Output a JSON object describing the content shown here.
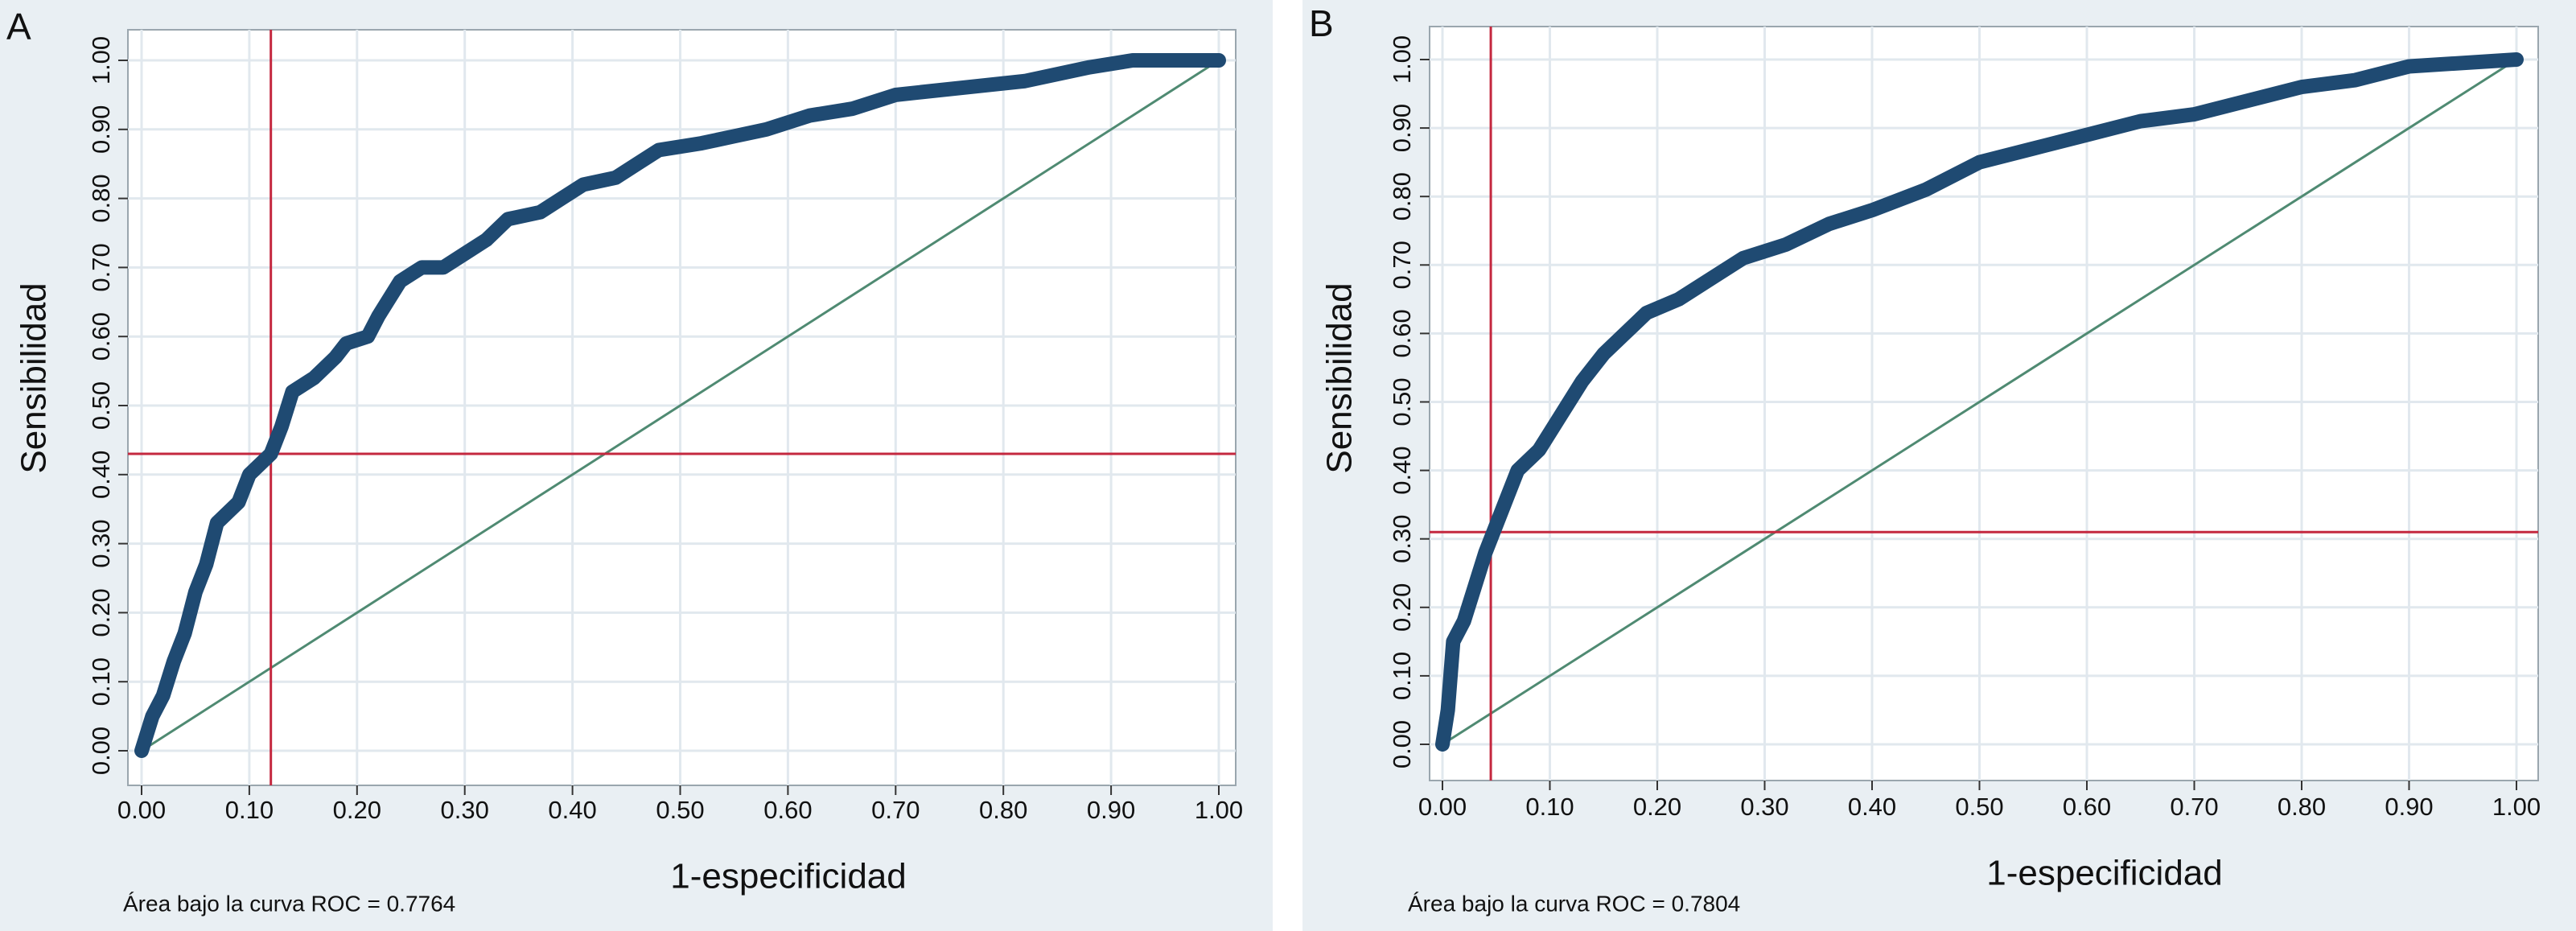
{
  "chart_data": [
    {
      "type": "line",
      "panel": "A",
      "xlabel": "1-especificidad",
      "ylabel": "Sensibilidad",
      "note": "Área bajo la curva ROC = 0.7764",
      "color": "#1f4a72",
      "grid": true,
      "x": [
        0,
        0.01,
        0.02,
        0.03,
        0.04,
        0.05,
        0.06,
        0.07,
        0.09,
        0.1,
        0.12,
        0.13,
        0.14,
        0.16,
        0.18,
        0.19,
        0.21,
        0.22,
        0.24,
        0.26,
        0.28,
        0.3,
        0.32,
        0.34,
        0.37,
        0.39,
        0.41,
        0.44,
        0.46,
        0.48,
        0.52,
        0.55,
        0.58,
        0.62,
        0.66,
        0.7,
        0.76,
        0.82,
        0.88,
        0.92,
        1
      ],
      "y": [
        0,
        0.05,
        0.08,
        0.13,
        0.17,
        0.23,
        0.27,
        0.33,
        0.36,
        0.4,
        0.43,
        0.47,
        0.52,
        0.54,
        0.57,
        0.59,
        0.6,
        0.63,
        0.68,
        0.7,
        0.7,
        0.72,
        0.74,
        0.77,
        0.78,
        0.8,
        0.82,
        0.83,
        0.85,
        0.87,
        0.88,
        0.89,
        0.9,
        0.92,
        0.93,
        0.95,
        0.96,
        0.97,
        0.99,
        1.0,
        1
      ],
      "diagonal": {
        "x": [
          0,
          1
        ],
        "y": [
          0,
          1
        ],
        "color": "#4f8a72"
      },
      "cutoff_x": 0.12,
      "cutoff_y": 0.43,
      "cutoff_color": "#c4283f",
      "xlim": [
        0,
        1
      ],
      "ylim": [
        0,
        1
      ],
      "xticks": [
        {
          "value": 0,
          "label": "0.00"
        },
        {
          "value": 0.1,
          "label": "0.10"
        },
        {
          "value": 0.2,
          "label": "0.20"
        },
        {
          "value": 0.3,
          "label": "0.30"
        },
        {
          "value": 0.4,
          "label": "0.40"
        },
        {
          "value": 0.5,
          "label": "0.50"
        },
        {
          "value": 0.6,
          "label": "0.60"
        },
        {
          "value": 0.7,
          "label": "0.70"
        },
        {
          "value": 0.8,
          "label": "0.80"
        },
        {
          "value": 0.9,
          "label": "0.90"
        },
        {
          "value": 1,
          "label": "1.00"
        }
      ],
      "yticks": [
        {
          "value": 0,
          "label": "0.00"
        },
        {
          "value": 0.1,
          "label": "0.10"
        },
        {
          "value": 0.2,
          "label": "0.20"
        },
        {
          "value": 0.3,
          "label": "0.30"
        },
        {
          "value": 0.4,
          "label": "0.40"
        },
        {
          "value": 0.5,
          "label": "0.50"
        },
        {
          "value": 0.6,
          "label": "0.60"
        },
        {
          "value": 0.7,
          "label": "0.70"
        },
        {
          "value": 0.8,
          "label": "0.80"
        },
        {
          "value": 0.9,
          "label": "0.90"
        },
        {
          "value": 1,
          "label": "1.00"
        }
      ]
    },
    {
      "type": "line",
      "panel": "B",
      "xlabel": "1-especificidad",
      "ylabel": "Sensibilidad",
      "note": "Área bajo la curva ROC = 0.7804",
      "color": "#1f4a72",
      "grid": true,
      "x": [
        0,
        0.005,
        0.01,
        0.02,
        0.03,
        0.04,
        0.05,
        0.06,
        0.07,
        0.09,
        0.11,
        0.13,
        0.15,
        0.17,
        0.19,
        0.22,
        0.25,
        0.28,
        0.32,
        0.36,
        0.4,
        0.45,
        0.5,
        0.55,
        0.6,
        0.65,
        0.7,
        0.75,
        0.8,
        0.85,
        0.9,
        1
      ],
      "y": [
        0,
        0.05,
        0.15,
        0.18,
        0.23,
        0.28,
        0.32,
        0.36,
        0.4,
        0.43,
        0.48,
        0.53,
        0.57,
        0.6,
        0.63,
        0.65,
        0.68,
        0.71,
        0.73,
        0.76,
        0.78,
        0.81,
        0.85,
        0.87,
        0.89,
        0.91,
        0.92,
        0.94,
        0.96,
        0.97,
        0.99,
        1
      ],
      "diagonal": {
        "x": [
          0,
          1
        ],
        "y": [
          0,
          1
        ],
        "color": "#4f8a72"
      },
      "cutoff_x": 0.045,
      "cutoff_y": 0.31,
      "cutoff_color": "#c4283f",
      "xlim": [
        0,
        1
      ],
      "ylim": [
        0,
        1
      ],
      "xticks": [
        {
          "value": 0,
          "label": "0.00"
        },
        {
          "value": 0.1,
          "label": "0.10"
        },
        {
          "value": 0.2,
          "label": "0.20"
        },
        {
          "value": 0.3,
          "label": "0.30"
        },
        {
          "value": 0.4,
          "label": "0.40"
        },
        {
          "value": 0.5,
          "label": "0.50"
        },
        {
          "value": 0.6,
          "label": "0.60"
        },
        {
          "value": 0.7,
          "label": "0.70"
        },
        {
          "value": 0.8,
          "label": "0.80"
        },
        {
          "value": 0.9,
          "label": "0.90"
        },
        {
          "value": 1,
          "label": "1.00"
        }
      ],
      "yticks": [
        {
          "value": 0,
          "label": "0.00"
        },
        {
          "value": 0.1,
          "label": "0.10"
        },
        {
          "value": 0.2,
          "label": "0.20"
        },
        {
          "value": 0.3,
          "label": "0.30"
        },
        {
          "value": 0.4,
          "label": "0.40"
        },
        {
          "value": 0.5,
          "label": "0.50"
        },
        {
          "value": 0.6,
          "label": "0.60"
        },
        {
          "value": 0.7,
          "label": "0.70"
        },
        {
          "value": 0.8,
          "label": "0.80"
        },
        {
          "value": 0.9,
          "label": "0.90"
        },
        {
          "value": 1,
          "label": "1.00"
        }
      ]
    }
  ]
}
